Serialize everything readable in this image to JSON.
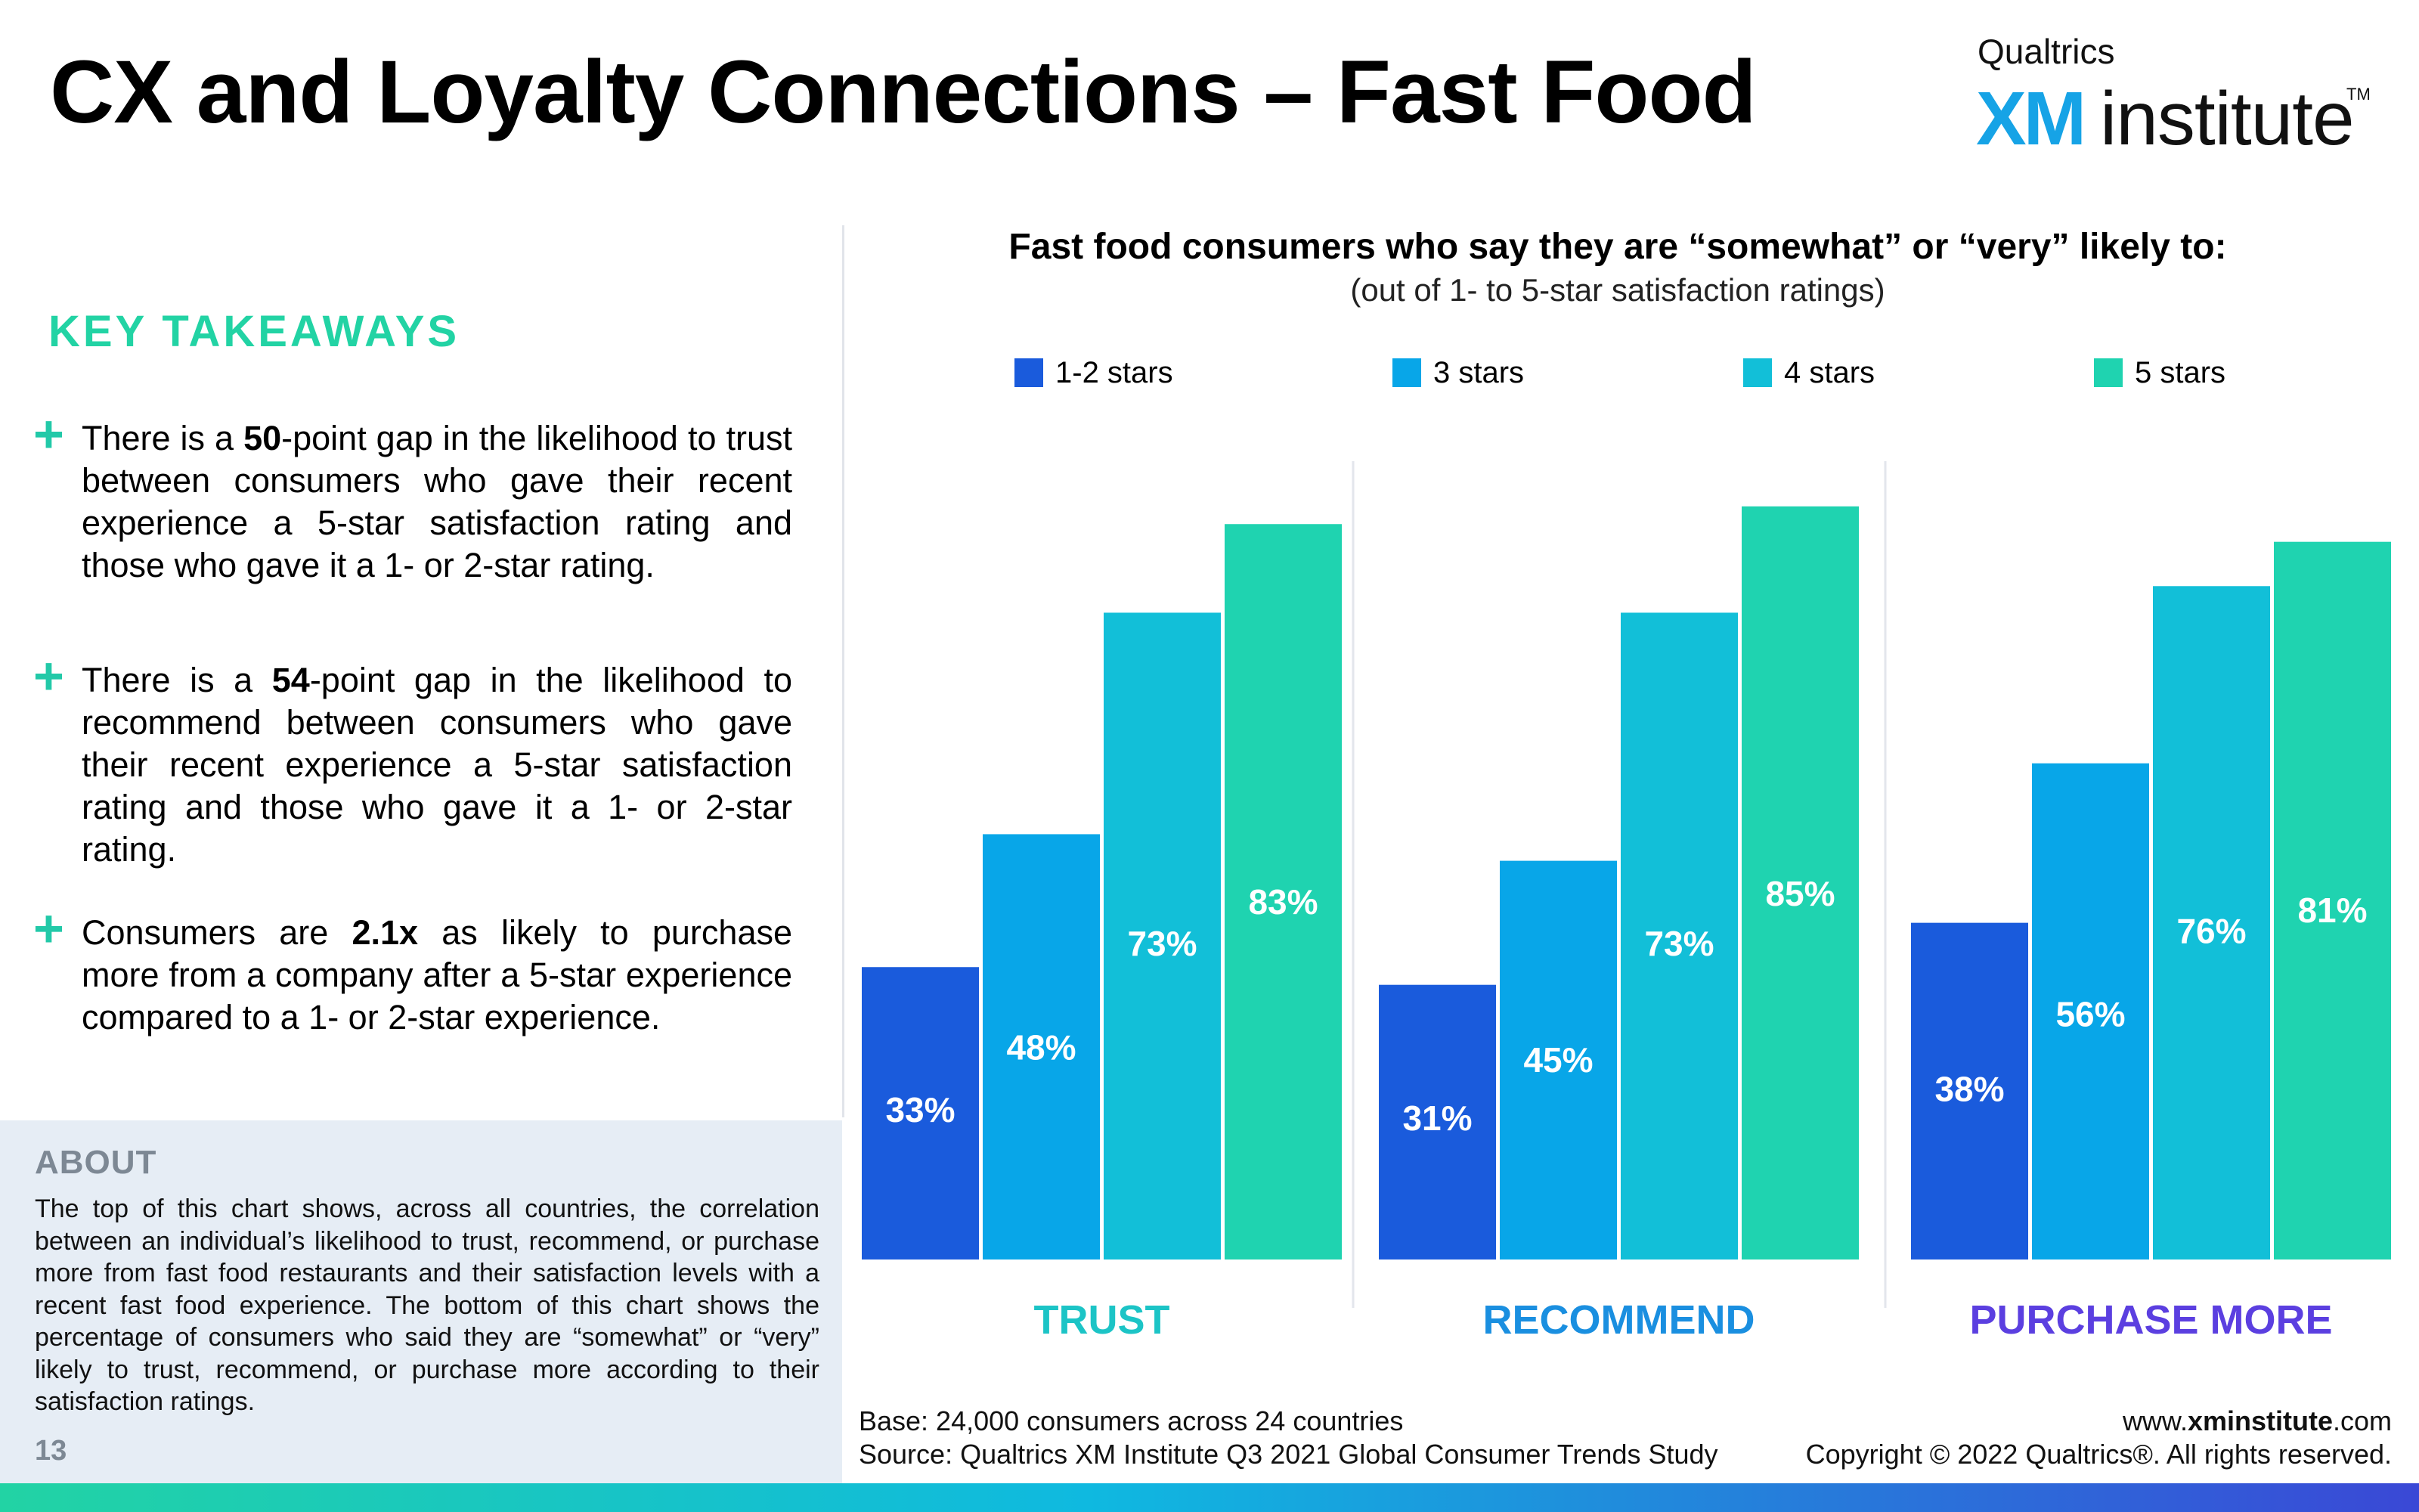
{
  "header": {
    "title": "CX and Loyalty Connections – Fast Food",
    "brand_top": "Qualtrics",
    "brand_xm": "XM",
    "brand_institute": "institute",
    "brand_tm": "TM"
  },
  "takeaways": {
    "title": "KEY TAKEAWAYS",
    "items": [
      {
        "pre": "There is a ",
        "bold": "50",
        "post": "-point gap in the likelihood to trust between consumers who gave their recent experience a 5-star satisfaction rating and those who gave it a 1- or 2-star rating."
      },
      {
        "pre": "There is a ",
        "bold": "54",
        "post": "-point gap in the likelihood to recommend between consumers who gave their recent experience a 5-star satisfaction rating and those who gave it a 1- or 2-star rating."
      },
      {
        "pre": "Consumers are ",
        "bold": "2.1x",
        "post": " as likely to purchase more from a company after a 5-star experience compared to a 1- or 2-star experience."
      }
    ]
  },
  "about": {
    "title": "ABOUT",
    "text": "The top of this chart shows, across all countries, the correlation between an individual’s likelihood to trust, recommend, or purchase more from fast food restaurants and their satisfaction levels with a recent fast food experience. The bottom of this chart shows the percentage of consumers who said they are “somewhat” or “very” likely to trust, recommend, or purchase more according to their satisfaction ratings.",
    "page_number": "13"
  },
  "chart_data": {
    "type": "bar",
    "title": "Fast food consumers who say they are “somewhat” or “very” likely to:",
    "subtitle": "(out of 1- to 5-star satisfaction ratings)",
    "categories": [
      "TRUST",
      "RECOMMEND",
      "PURCHASE MORE"
    ],
    "category_colors": [
      "#1cc4c6",
      "#1a8fe0",
      "#5b3fe0"
    ],
    "series": [
      {
        "name": "1-2 stars",
        "values": [
          33,
          31,
          38
        ],
        "color": "#1a5bdc"
      },
      {
        "name": "3 stars",
        "values": [
          48,
          45,
          56
        ],
        "color": "#08a6e8"
      },
      {
        "name": "4 stars",
        "values": [
          73,
          73,
          76
        ],
        "color": "#12bfd8"
      },
      {
        "name": "5 stars",
        "values": [
          83,
          85,
          81
        ],
        "color": "#1fd3b0"
      }
    ],
    "value_suffix": "%",
    "ylim": [
      0,
      100
    ],
    "legend_position": "top",
    "grid": false
  },
  "footer": {
    "base": "Base: 24,000 consumers across 24 countries",
    "source": "Source: Qualtrics XM Institute Q3 2021 Global Consumer Trends Study",
    "url_pre": "www.",
    "url_bold": "xminstitute",
    "url_post": ".com",
    "copyright": "Copyright © 2022 Qualtrics®. All rights reserved."
  }
}
